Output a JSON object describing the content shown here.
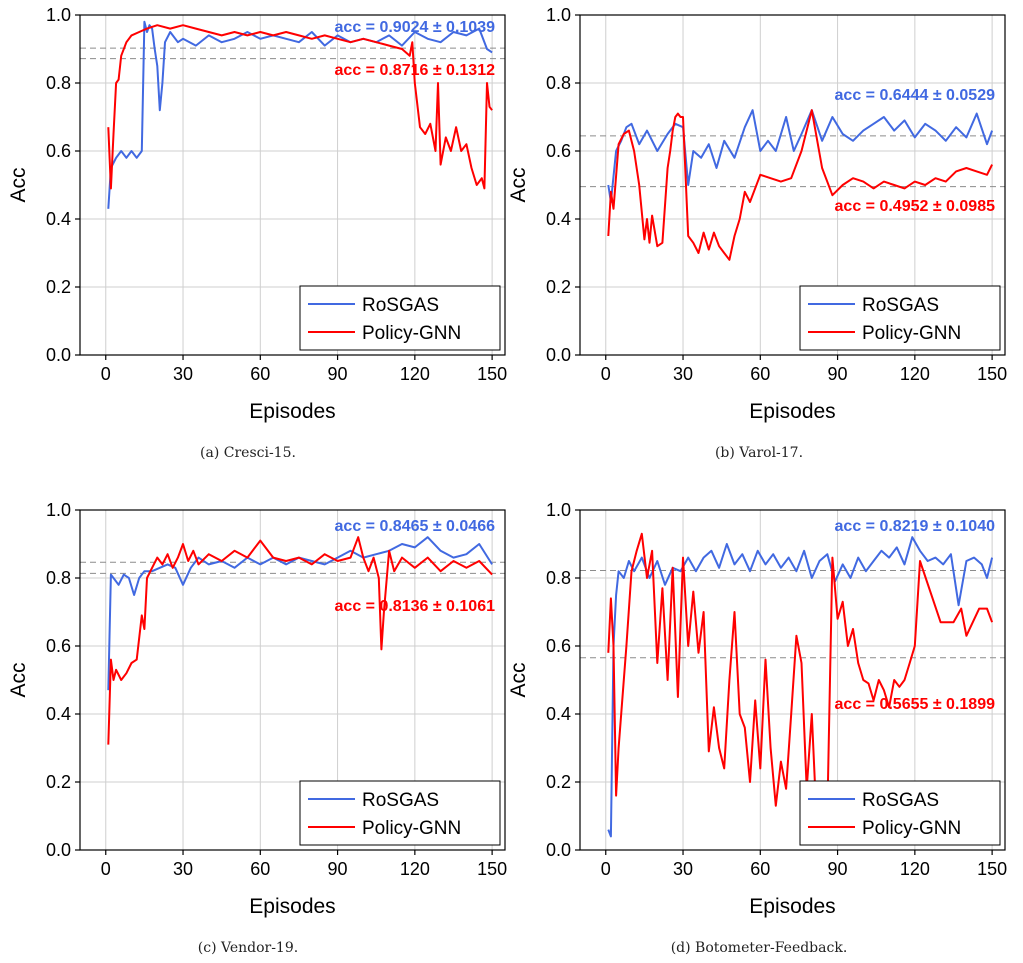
{
  "colors": {
    "rosgas": "#4169e1",
    "policy": "#ff0000",
    "grid": "#cfcfcf",
    "dashed": "#8c8c8c"
  },
  "chart_data": [
    {
      "type": "line",
      "caption": "(a)  Cresci-15.",
      "xlabel": "Episodes",
      "ylabel": "Acc",
      "xlim": [
        -10,
        155
      ],
      "ylim": [
        0,
        1.0
      ],
      "xticks": [
        "0",
        "30",
        "60",
        "90",
        "120",
        "150"
      ],
      "yticks": [
        "0.0",
        "0.2",
        "0.4",
        "0.6",
        "0.8",
        "1.0"
      ],
      "grid": true,
      "legend_position": "bottom-right",
      "annotations": [
        {
          "text": "acc = 0.9024 ± 0.1039",
          "series": "RoSGAS",
          "mean": 0.9024
        },
        {
          "text": "acc = 0.8716 ± 0.1312",
          "series": "Policy-GNN",
          "mean": 0.8716
        }
      ],
      "series": [
        {
          "name": "RoSGAS",
          "color": "#4169e1",
          "x": [
            1,
            2,
            4,
            6,
            8,
            10,
            12,
            14,
            15,
            16,
            17,
            18,
            19,
            20,
            21,
            22,
            23,
            25,
            28,
            30,
            35,
            40,
            45,
            50,
            55,
            60,
            65,
            70,
            75,
            80,
            85,
            90,
            95,
            100,
            105,
            110,
            115,
            120,
            125,
            130,
            135,
            140,
            145,
            148,
            150
          ],
          "y": [
            0.43,
            0.55,
            0.58,
            0.6,
            0.58,
            0.6,
            0.58,
            0.6,
            0.98,
            0.95,
            0.97,
            0.96,
            0.9,
            0.85,
            0.72,
            0.8,
            0.92,
            0.95,
            0.92,
            0.93,
            0.91,
            0.94,
            0.92,
            0.93,
            0.95,
            0.93,
            0.94,
            0.93,
            0.92,
            0.95,
            0.91,
            0.94,
            0.92,
            0.93,
            0.92,
            0.94,
            0.91,
            0.95,
            0.93,
            0.92,
            0.95,
            0.94,
            0.96,
            0.9,
            0.89
          ]
        },
        {
          "name": "Policy-GNN",
          "color": "#ff0000",
          "x": [
            1,
            2,
            3,
            4,
            5,
            6,
            8,
            10,
            13,
            16,
            20,
            25,
            30,
            35,
            40,
            45,
            50,
            55,
            60,
            65,
            70,
            75,
            80,
            85,
            90,
            95,
            100,
            105,
            110,
            115,
            118,
            119,
            120,
            122,
            124,
            126,
            128,
            129,
            130,
            132,
            134,
            136,
            138,
            140,
            142,
            144,
            146,
            147,
            148,
            149,
            150
          ],
          "y": [
            0.67,
            0.49,
            0.65,
            0.8,
            0.81,
            0.88,
            0.92,
            0.94,
            0.95,
            0.96,
            0.97,
            0.96,
            0.97,
            0.96,
            0.95,
            0.94,
            0.95,
            0.94,
            0.95,
            0.94,
            0.95,
            0.94,
            0.93,
            0.94,
            0.93,
            0.92,
            0.93,
            0.92,
            0.91,
            0.9,
            0.88,
            0.92,
            0.8,
            0.67,
            0.65,
            0.68,
            0.6,
            0.8,
            0.56,
            0.64,
            0.6,
            0.67,
            0.6,
            0.62,
            0.55,
            0.5,
            0.52,
            0.49,
            0.8,
            0.73,
            0.72
          ]
        }
      ]
    },
    {
      "type": "line",
      "caption": "(b)  Varol-17.",
      "xlabel": "Episodes",
      "ylabel": "Acc",
      "xlim": [
        -10,
        155
      ],
      "ylim": [
        0,
        1.0
      ],
      "xticks": [
        "0",
        "30",
        "60",
        "90",
        "120",
        "150"
      ],
      "yticks": [
        "0.0",
        "0.2",
        "0.4",
        "0.6",
        "0.8",
        "1.0"
      ],
      "grid": true,
      "legend_position": "bottom-right",
      "annotations": [
        {
          "text": "acc = 0.6444 ± 0.0529",
          "series": "RoSGAS",
          "mean": 0.6444
        },
        {
          "text": "acc = 0.4952 ± 0.0985",
          "series": "Policy-GNN",
          "mean": 0.4952
        }
      ],
      "series": [
        {
          "name": "RoSGAS",
          "color": "#4169e1",
          "x": [
            1,
            2,
            4,
            6,
            8,
            10,
            13,
            16,
            20,
            24,
            27,
            30,
            32,
            34,
            37,
            40,
            43,
            46,
            50,
            54,
            57,
            60,
            63,
            66,
            70,
            73,
            76,
            80,
            84,
            88,
            92,
            96,
            100,
            104,
            108,
            112,
            116,
            120,
            124,
            128,
            132,
            136,
            140,
            144,
            148,
            150
          ],
          "y": [
            0.5,
            0.45,
            0.6,
            0.63,
            0.67,
            0.68,
            0.62,
            0.66,
            0.6,
            0.65,
            0.68,
            0.67,
            0.5,
            0.6,
            0.58,
            0.62,
            0.55,
            0.63,
            0.58,
            0.67,
            0.72,
            0.6,
            0.63,
            0.6,
            0.7,
            0.6,
            0.65,
            0.72,
            0.63,
            0.7,
            0.65,
            0.63,
            0.66,
            0.68,
            0.7,
            0.66,
            0.69,
            0.64,
            0.68,
            0.66,
            0.63,
            0.67,
            0.64,
            0.71,
            0.62,
            0.66
          ]
        },
        {
          "name": "Policy-GNN",
          "color": "#ff0000",
          "x": [
            1,
            2,
            3,
            5,
            7,
            9,
            11,
            13,
            15,
            16,
            17,
            18,
            20,
            22,
            24,
            25,
            26,
            27,
            28,
            29,
            30,
            32,
            34,
            36,
            38,
            40,
            42,
            44,
            46,
            48,
            50,
            52,
            54,
            56,
            60,
            64,
            68,
            72,
            76,
            80,
            84,
            88,
            92,
            96,
            100,
            104,
            108,
            112,
            116,
            120,
            124,
            128,
            132,
            136,
            140,
            144,
            148,
            150
          ],
          "y": [
            0.35,
            0.48,
            0.43,
            0.62,
            0.65,
            0.66,
            0.6,
            0.5,
            0.34,
            0.4,
            0.33,
            0.41,
            0.32,
            0.33,
            0.55,
            0.6,
            0.66,
            0.7,
            0.71,
            0.7,
            0.7,
            0.35,
            0.33,
            0.3,
            0.36,
            0.31,
            0.36,
            0.32,
            0.3,
            0.28,
            0.35,
            0.4,
            0.48,
            0.45,
            0.53,
            0.52,
            0.51,
            0.52,
            0.6,
            0.72,
            0.55,
            0.47,
            0.5,
            0.52,
            0.51,
            0.49,
            0.51,
            0.5,
            0.49,
            0.51,
            0.5,
            0.52,
            0.51,
            0.54,
            0.55,
            0.54,
            0.53,
            0.56
          ]
        }
      ]
    },
    {
      "type": "line",
      "caption": "(c)  Vendor-19.",
      "xlabel": "Episodes",
      "ylabel": "Acc",
      "xlim": [
        -10,
        155
      ],
      "ylim": [
        0,
        1.0
      ],
      "xticks": [
        "0",
        "30",
        "60",
        "90",
        "120",
        "150"
      ],
      "yticks": [
        "0.0",
        "0.2",
        "0.4",
        "0.6",
        "0.8",
        "1.0"
      ],
      "grid": true,
      "legend_position": "bottom-right",
      "annotations": [
        {
          "text": "acc = 0.8465 ± 0.0466",
          "series": "RoSGAS",
          "mean": 0.8465
        },
        {
          "text": "acc = 0.8136 ± 0.1061",
          "series": "Policy-GNN",
          "mean": 0.8136
        }
      ],
      "series": [
        {
          "name": "RoSGAS",
          "color": "#4169e1",
          "x": [
            1,
            2,
            3,
            5,
            7,
            9,
            11,
            13,
            15,
            18,
            21,
            24,
            27,
            30,
            33,
            36,
            40,
            45,
            50,
            55,
            60,
            65,
            70,
            75,
            80,
            85,
            90,
            95,
            100,
            105,
            110,
            115,
            120,
            125,
            130,
            135,
            140,
            145,
            150
          ],
          "y": [
            0.47,
            0.81,
            0.8,
            0.78,
            0.81,
            0.8,
            0.75,
            0.8,
            0.82,
            0.82,
            0.83,
            0.84,
            0.83,
            0.78,
            0.83,
            0.86,
            0.84,
            0.85,
            0.83,
            0.86,
            0.84,
            0.86,
            0.84,
            0.86,
            0.85,
            0.84,
            0.86,
            0.88,
            0.86,
            0.87,
            0.88,
            0.9,
            0.89,
            0.92,
            0.88,
            0.86,
            0.87,
            0.9,
            0.84
          ]
        },
        {
          "name": "Policy-GNN",
          "color": "#ff0000",
          "x": [
            1,
            2,
            3,
            4,
            6,
            8,
            10,
            12,
            14,
            15,
            16,
            18,
            20,
            22,
            24,
            26,
            28,
            30,
            32,
            34,
            36,
            40,
            45,
            50,
            55,
            60,
            65,
            70,
            75,
            80,
            85,
            90,
            95,
            98,
            100,
            102,
            104,
            106,
            107,
            108,
            110,
            112,
            115,
            120,
            125,
            130,
            135,
            140,
            145,
            150
          ],
          "y": [
            0.31,
            0.56,
            0.5,
            0.53,
            0.5,
            0.52,
            0.55,
            0.56,
            0.69,
            0.65,
            0.8,
            0.83,
            0.86,
            0.84,
            0.87,
            0.83,
            0.86,
            0.9,
            0.85,
            0.88,
            0.84,
            0.87,
            0.85,
            0.88,
            0.86,
            0.91,
            0.86,
            0.85,
            0.86,
            0.84,
            0.87,
            0.85,
            0.86,
            0.92,
            0.86,
            0.82,
            0.86,
            0.8,
            0.59,
            0.7,
            0.88,
            0.82,
            0.86,
            0.83,
            0.86,
            0.82,
            0.85,
            0.83,
            0.85,
            0.81
          ]
        }
      ]
    },
    {
      "type": "line",
      "caption": "(d)  Botometer-Feedback.",
      "xlabel": "Episodes",
      "ylabel": "Acc",
      "xlim": [
        -10,
        155
      ],
      "ylim": [
        0,
        1.0
      ],
      "xticks": [
        "0",
        "30",
        "60",
        "90",
        "120",
        "150"
      ],
      "yticks": [
        "0.0",
        "0.2",
        "0.4",
        "0.6",
        "0.8",
        "1.0"
      ],
      "grid": true,
      "legend_position": "bottom-right",
      "annotations": [
        {
          "text": "acc = 0.8219 ± 0.1040",
          "series": "RoSGAS",
          "mean": 0.8219
        },
        {
          "text": "acc = 0.5655 ± 0.1899",
          "series": "Policy-GNN",
          "mean": 0.5655
        }
      ],
      "series": [
        {
          "name": "RoSGAS",
          "color": "#4169e1",
          "x": [
            1,
            2,
            3,
            4,
            5,
            7,
            9,
            11,
            14,
            17,
            20,
            23,
            26,
            29,
            32,
            35,
            38,
            41,
            44,
            47,
            50,
            53,
            56,
            59,
            62,
            65,
            68,
            71,
            74,
            77,
            80,
            83,
            86,
            89,
            92,
            95,
            98,
            101,
            104,
            107,
            110,
            113,
            116,
            119,
            122,
            125,
            128,
            131,
            134,
            137,
            140,
            143,
            146,
            148,
            150
          ],
          "y": [
            0.06,
            0.04,
            0.6,
            0.75,
            0.82,
            0.8,
            0.85,
            0.82,
            0.86,
            0.8,
            0.85,
            0.78,
            0.83,
            0.82,
            0.86,
            0.82,
            0.86,
            0.88,
            0.83,
            0.9,
            0.84,
            0.87,
            0.82,
            0.88,
            0.84,
            0.87,
            0.83,
            0.86,
            0.82,
            0.88,
            0.8,
            0.85,
            0.87,
            0.79,
            0.84,
            0.8,
            0.86,
            0.82,
            0.85,
            0.88,
            0.86,
            0.89,
            0.84,
            0.92,
            0.88,
            0.85,
            0.86,
            0.84,
            0.87,
            0.72,
            0.85,
            0.86,
            0.84,
            0.8,
            0.86
          ]
        },
        {
          "name": "Policy-GNN",
          "color": "#ff0000",
          "x": [
            1,
            2,
            3,
            4,
            5,
            6,
            8,
            10,
            12,
            14,
            16,
            18,
            20,
            22,
            24,
            26,
            28,
            30,
            32,
            34,
            36,
            38,
            40,
            42,
            44,
            46,
            48,
            50,
            52,
            54,
            56,
            58,
            60,
            62,
            64,
            66,
            68,
            70,
            72,
            74,
            76,
            78,
            80,
            82,
            84,
            86,
            88,
            90,
            92,
            94,
            96,
            98,
            100,
            102,
            104,
            106,
            108,
            110,
            112,
            114,
            116,
            118,
            120,
            122,
            130,
            135,
            138,
            140,
            145,
            148,
            150
          ],
          "y": [
            0.58,
            0.74,
            0.6,
            0.16,
            0.3,
            0.4,
            0.6,
            0.82,
            0.88,
            0.93,
            0.8,
            0.88,
            0.55,
            0.77,
            0.5,
            0.83,
            0.45,
            0.86,
            0.6,
            0.76,
            0.58,
            0.7,
            0.29,
            0.42,
            0.3,
            0.24,
            0.5,
            0.7,
            0.4,
            0.36,
            0.2,
            0.44,
            0.24,
            0.56,
            0.3,
            0.13,
            0.26,
            0.18,
            0.4,
            0.63,
            0.55,
            0.18,
            0.4,
            0.06,
            0.2,
            0.1,
            0.86,
            0.68,
            0.73,
            0.6,
            0.65,
            0.55,
            0.5,
            0.49,
            0.44,
            0.5,
            0.47,
            0.42,
            0.5,
            0.48,
            0.5,
            0.55,
            0.6,
            0.85,
            0.67,
            0.67,
            0.71,
            0.63,
            0.71,
            0.71,
            0.67
          ]
        }
      ]
    }
  ]
}
